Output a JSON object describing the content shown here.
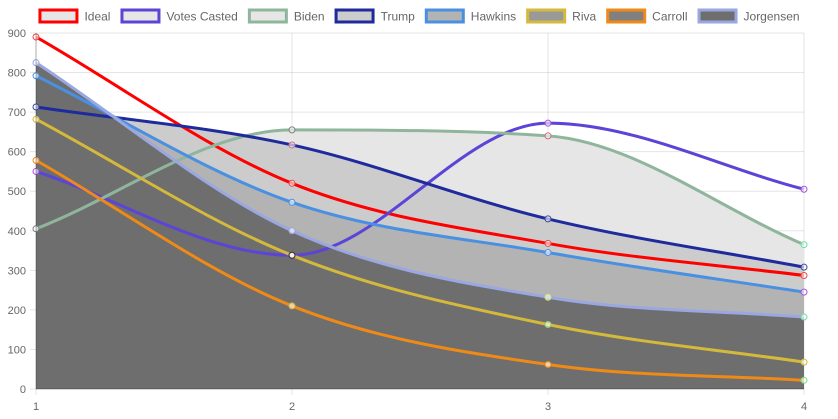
{
  "chart_data": {
    "type": "line",
    "x": [
      "1",
      "2",
      "3",
      "4"
    ],
    "ylim": [
      0,
      900
    ],
    "yticks": [
      0,
      100,
      200,
      300,
      400,
      500,
      600,
      700,
      800,
      900
    ],
    "grid": true,
    "legend_position": "top",
    "series": [
      {
        "name": "Ideal",
        "color": "#ff0000",
        "point_color": "#e7484a",
        "values": [
          890,
          520,
          368,
          287
        ],
        "fill": false
      },
      {
        "name": "Votes Casted",
        "color": "#5b44d6",
        "point_color": "#a54fd9",
        "values": [
          550,
          338,
          672,
          505
        ],
        "fill": false
      },
      {
        "name": "Biden",
        "color": "#8fb59c",
        "point_color": "#7e7e7e",
        "values": [
          405,
          655,
          640,
          365
        ],
        "fill": true,
        "fill_color": "#e6e6e6",
        "dot_colors": [
          "#7e7e7e",
          "#7e7e7e",
          "#cf6e83",
          "#6ee0a3"
        ]
      },
      {
        "name": "Trump",
        "color": "#1f2a9c",
        "point_color": "#3a4896",
        "values": [
          713,
          617,
          430,
          308
        ],
        "fill": true,
        "fill_color": "#cccccc",
        "dot_colors": [
          "#3a4896",
          "#cf6e83",
          "#3a4896",
          "#3a4896"
        ]
      },
      {
        "name": "Hawkins",
        "color": "#4a90e2",
        "point_color": "#4a90e2",
        "values": [
          792,
          472,
          345,
          245
        ],
        "fill": true,
        "fill_color": "#b3b3b3",
        "dot_colors": [
          "#4a90e2",
          "#4a90e2",
          "#4a90e2",
          "#b04fd9"
        ]
      },
      {
        "name": "Riva",
        "color": "#d4b93c",
        "point_color": "#d4b93c",
        "values": [
          682,
          338,
          163,
          68
        ],
        "fill": true,
        "fill_color": "#999999",
        "dot_colors": [
          "#d4b93c",
          "#2a2a2a",
          "#8ecf6e",
          "#d4b93c"
        ]
      },
      {
        "name": "Carroll",
        "color": "#ef8a17",
        "point_color": "#ef8a17",
        "values": [
          578,
          210,
          62,
          22
        ],
        "fill": true,
        "fill_color": "#808080",
        "dot_colors": [
          "#ef8a17",
          "#d4b93c",
          "#ef8a17",
          "#6ee07e"
        ]
      },
      {
        "name": "Jorgensen",
        "color": "#9aa7e0",
        "point_color": "#9aa7e0",
        "values": [
          825,
          400,
          232,
          182
        ],
        "fill": true,
        "fill_color": "#6e6e6e",
        "dot_colors": [
          "#9aa7e0",
          "#9aa7e0",
          "#d4e06e",
          "#6ee0a3"
        ]
      }
    ]
  }
}
